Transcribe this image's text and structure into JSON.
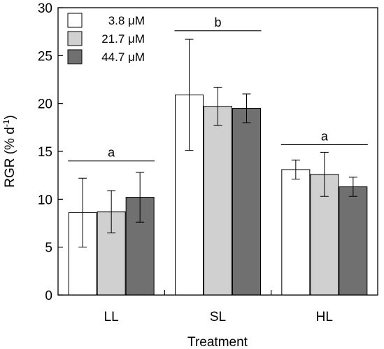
{
  "chart_data": {
    "type": "bar",
    "title": "",
    "xlabel": "Treatment",
    "ylabel_main": "RGR (% d",
    "ylabel_sup": "-1",
    "ylabel_tail": ")",
    "categories": [
      "LL",
      "SL",
      "HL"
    ],
    "ylim": [
      0,
      30
    ],
    "yticks": [
      0,
      5,
      10,
      15,
      20,
      25,
      30
    ],
    "grid": false,
    "legend_position": "top-left",
    "series": [
      {
        "name": "3.8 μM",
        "color": "#ffffff",
        "values": [
          8.6,
          20.9,
          13.1
        ],
        "errors": [
          3.6,
          5.8,
          1.0
        ]
      },
      {
        "name": "21.7 μM",
        "color": "#d0d0d0",
        "values": [
          8.7,
          19.7,
          12.6
        ],
        "errors": [
          2.2,
          2.0,
          2.3
        ]
      },
      {
        "name": "44.7 μM",
        "color": "#707070",
        "values": [
          10.2,
          19.5,
          11.3
        ],
        "errors": [
          2.6,
          1.5,
          1.0
        ]
      }
    ],
    "significance": [
      {
        "category": "LL",
        "label": "a",
        "line_y": 14.0
      },
      {
        "category": "SL",
        "label": "b",
        "line_y": 27.6
      },
      {
        "category": "HL",
        "label": "a",
        "line_y": 15.7
      }
    ]
  }
}
